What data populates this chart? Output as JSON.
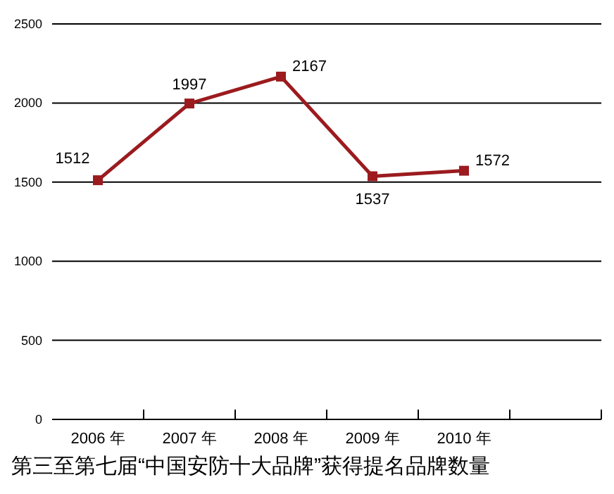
{
  "chart_data": {
    "type": "line",
    "title": "第三至第七届“中国安防十大品牌”获得提名品牌数量",
    "categories": [
      "2006 年",
      "2007 年",
      "2008 年",
      "2009 年",
      "2010 年",
      null
    ],
    "series": [
      {
        "color": "#9b1b1f",
        "values": [
          1512,
          1997,
          2167,
          1537,
          1572,
          null
        ]
      }
    ],
    "ylim": [
      0,
      2500
    ],
    "yticks": [
      0,
      500,
      1000,
      1500,
      2000,
      2500
    ],
    "grid": "y",
    "marker": "square",
    "line_style": "solid",
    "data_labels": true
  }
}
